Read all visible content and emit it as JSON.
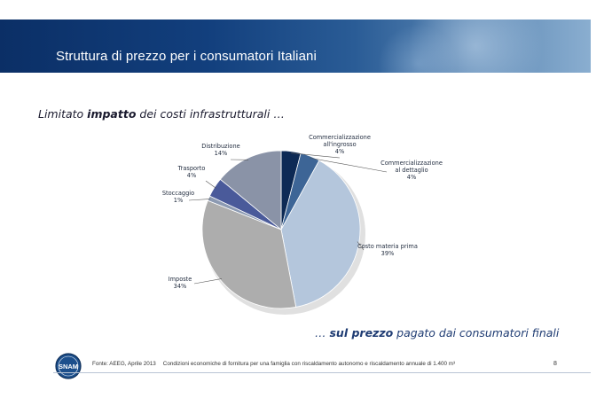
{
  "header": {
    "title": "Struttura di prezzo per i consumatori Italiani"
  },
  "subtitle": {
    "plain_start": "Limitato ",
    "bold": "impatto",
    "plain_end": " dei costi infrastrutturali …"
  },
  "tagline": {
    "plain_start": "… ",
    "bold": "sul prezzo",
    "plain_end": " pagato dai consumatori finali"
  },
  "chart_data": {
    "type": "pie",
    "title": "",
    "slices": [
      {
        "label_lines": [
          "Commercializzazione",
          "all'ingrosso"
        ],
        "pct_label": "4%",
        "value": 4,
        "color": "#0d2a55"
      },
      {
        "label_lines": [
          "Commercializzazione",
          "al dettaglio"
        ],
        "pct_label": "4%",
        "value": 4,
        "color": "#3d6596"
      },
      {
        "label_lines": [
          "Costo materia prima"
        ],
        "pct_label": "39%",
        "value": 39,
        "color": "#b4c6dc"
      },
      {
        "label_lines": [
          "Imposte"
        ],
        "pct_label": "34%",
        "value": 34,
        "color": "#adadad"
      },
      {
        "label_lines": [
          "Stoccaggio"
        ],
        "pct_label": "1%",
        "value": 1,
        "color": "#8c9ab2"
      },
      {
        "label_lines": [
          "Trasporto"
        ],
        "pct_label": "4%",
        "value": 4,
        "color": "#4a5a9a"
      },
      {
        "label_lines": [
          "Distribuzione"
        ],
        "pct_label": "14%",
        "value": 14,
        "color": "#8a93a7"
      }
    ]
  },
  "footer": {
    "source_label": "Fonte: AEEG, Aprile 2013",
    "source_detail": "Condizioni economiche di fornitura per una famiglia con riscaldamento autonomo e riscaldamento annuale di 1.400 m³",
    "page_number": "8",
    "logo_text": "SNAM"
  }
}
